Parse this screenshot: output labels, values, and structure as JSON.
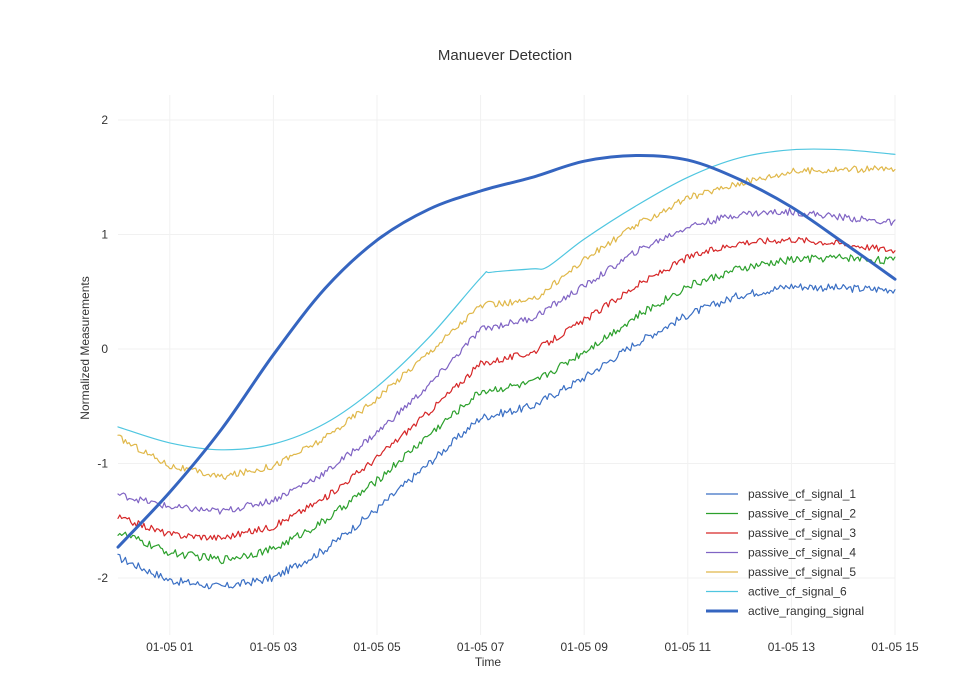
{
  "chart_data": {
    "type": "line",
    "title": "Manuever Detection",
    "xlabel": "Time",
    "ylabel": "Normalized Measurements",
    "x_ticks": [
      "01-05 01",
      "01-05 03",
      "01-05 05",
      "01-05 07",
      "01-05 09",
      "01-05 11",
      "01-05 13",
      "01-05 15"
    ],
    "y_ticks": [
      "-2",
      "-1",
      "0",
      "1",
      "2"
    ],
    "xlim_hours": [
      0,
      15
    ],
    "ylim": [
      -2.3,
      2.2
    ],
    "grid": true,
    "legend_position": "bottom-right",
    "series": [
      {
        "name": "passive_cf_signal_1",
        "color": "#3a6fc4",
        "width": 1.2,
        "noise": 0.035,
        "points": [
          [
            0,
            -1.82
          ],
          [
            1,
            -2.02
          ],
          [
            2,
            -2.08
          ],
          [
            3,
            -2.0
          ],
          [
            4,
            -1.75
          ],
          [
            5,
            -1.4
          ],
          [
            6,
            -1.0
          ],
          [
            7,
            -0.6
          ],
          [
            8,
            -0.5
          ],
          [
            9,
            -0.25
          ],
          [
            10,
            0.05
          ],
          [
            11,
            0.3
          ],
          [
            12,
            0.47
          ],
          [
            13,
            0.55
          ],
          [
            14,
            0.53
          ],
          [
            15,
            0.52
          ]
        ]
      },
      {
        "name": "passive_cf_signal_2",
        "color": "#2ca02c",
        "width": 1.2,
        "noise": 0.035,
        "points": [
          [
            0,
            -1.6
          ],
          [
            1,
            -1.78
          ],
          [
            2,
            -1.84
          ],
          [
            3,
            -1.75
          ],
          [
            4,
            -1.5
          ],
          [
            5,
            -1.15
          ],
          [
            6,
            -0.75
          ],
          [
            7,
            -0.37
          ],
          [
            8,
            -0.3
          ],
          [
            9,
            -0.02
          ],
          [
            10,
            0.28
          ],
          [
            11,
            0.55
          ],
          [
            12,
            0.7
          ],
          [
            13,
            0.78
          ],
          [
            14,
            0.8
          ],
          [
            15,
            0.77
          ]
        ]
      },
      {
        "name": "passive_cf_signal_3",
        "color": "#d62728",
        "width": 1.2,
        "noise": 0.03,
        "points": [
          [
            0,
            -1.47
          ],
          [
            1,
            -1.62
          ],
          [
            2,
            -1.65
          ],
          [
            3,
            -1.55
          ],
          [
            4,
            -1.3
          ],
          [
            5,
            -0.95
          ],
          [
            6,
            -0.55
          ],
          [
            7,
            -0.13
          ],
          [
            8,
            -0.03
          ],
          [
            9,
            0.25
          ],
          [
            10,
            0.55
          ],
          [
            11,
            0.8
          ],
          [
            12,
            0.93
          ],
          [
            13,
            0.96
          ],
          [
            14,
            0.92
          ],
          [
            15,
            0.86
          ]
        ]
      },
      {
        "name": "passive_cf_signal_4",
        "color": "#8064c4",
        "width": 1.2,
        "noise": 0.03,
        "points": [
          [
            0,
            -1.27
          ],
          [
            1,
            -1.38
          ],
          [
            2,
            -1.42
          ],
          [
            3,
            -1.32
          ],
          [
            4,
            -1.08
          ],
          [
            5,
            -0.73
          ],
          [
            6,
            -0.32
          ],
          [
            7,
            0.17
          ],
          [
            8,
            0.27
          ],
          [
            9,
            0.55
          ],
          [
            10,
            0.85
          ],
          [
            11,
            1.07
          ],
          [
            12,
            1.18
          ],
          [
            13,
            1.2
          ],
          [
            14,
            1.15
          ],
          [
            15,
            1.1
          ]
        ]
      },
      {
        "name": "passive_cf_signal_5",
        "color": "#e0b84a",
        "width": 1.2,
        "noise": 0.03,
        "points": [
          [
            0,
            -0.77
          ],
          [
            1,
            -1.02
          ],
          [
            2,
            -1.12
          ],
          [
            3,
            -1.02
          ],
          [
            4,
            -0.78
          ],
          [
            5,
            -0.43
          ],
          [
            6,
            -0.03
          ],
          [
            7,
            0.38
          ],
          [
            8,
            0.42
          ],
          [
            9,
            0.78
          ],
          [
            10,
            1.08
          ],
          [
            11,
            1.32
          ],
          [
            12,
            1.45
          ],
          [
            13,
            1.55
          ],
          [
            14,
            1.57
          ],
          [
            15,
            1.57
          ]
        ]
      },
      {
        "name": "active_cf_signal_6",
        "color": "#4fc6e0",
        "width": 1.2,
        "noise": 0,
        "points": [
          [
            0,
            -0.68
          ],
          [
            1,
            -0.82
          ],
          [
            2,
            -0.88
          ],
          [
            3,
            -0.83
          ],
          [
            4,
            -0.65
          ],
          [
            5,
            -0.33
          ],
          [
            6,
            0.1
          ],
          [
            7,
            0.62
          ],
          [
            7.2,
            0.67
          ],
          [
            8,
            0.7
          ],
          [
            8.3,
            0.72
          ],
          [
            9,
            0.96
          ],
          [
            10,
            1.25
          ],
          [
            11,
            1.5
          ],
          [
            12,
            1.67
          ],
          [
            13,
            1.74
          ],
          [
            14,
            1.74
          ],
          [
            15,
            1.7
          ]
        ]
      },
      {
        "name": "active_ranging_signal",
        "color": "#3565c0",
        "width": 3,
        "noise": 0,
        "points": [
          [
            0,
            -1.73
          ],
          [
            1,
            -1.25
          ],
          [
            2,
            -0.7
          ],
          [
            3,
            -0.05
          ],
          [
            4,
            0.53
          ],
          [
            5,
            0.95
          ],
          [
            6,
            1.22
          ],
          [
            7,
            1.38
          ],
          [
            8,
            1.5
          ],
          [
            9,
            1.64
          ],
          [
            10,
            1.69
          ],
          [
            11,
            1.65
          ],
          [
            12,
            1.48
          ],
          [
            13,
            1.24
          ],
          [
            14,
            0.93
          ],
          [
            15,
            0.61
          ]
        ]
      }
    ]
  }
}
